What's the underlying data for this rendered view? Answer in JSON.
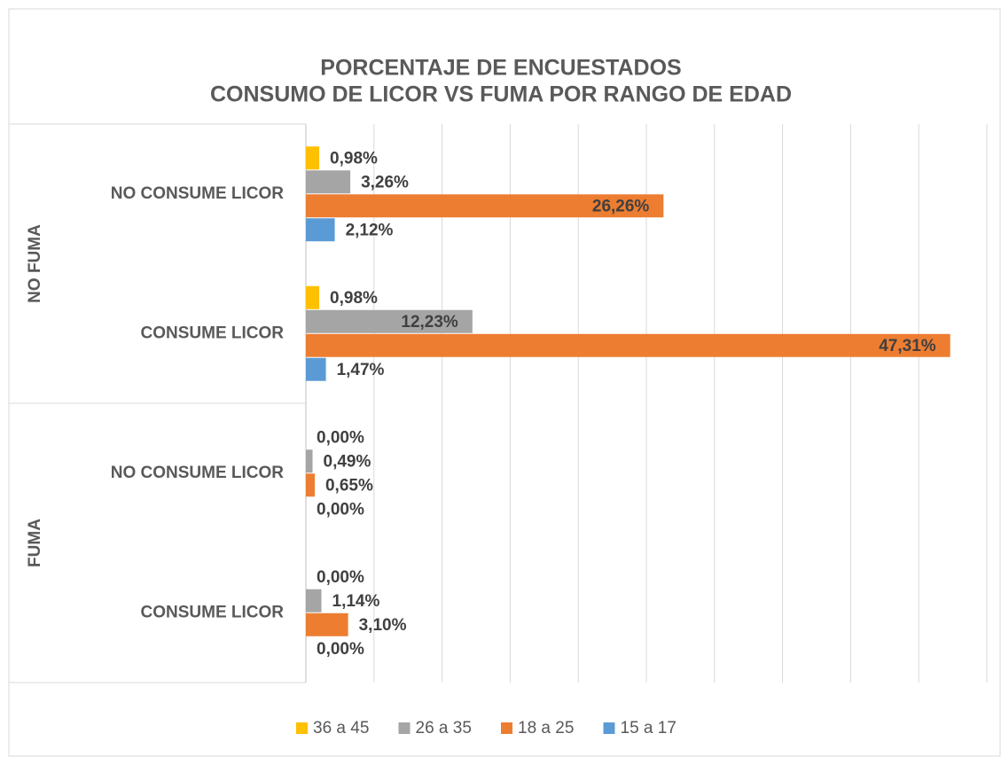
{
  "chart_data": {
    "type": "bar",
    "orientation": "horizontal",
    "title": [
      "PORCENTAJE DE ENCUESTADOS",
      "CONSUMO DE LICOR VS FUMA POR RANGO DE EDAD"
    ],
    "groups": [
      {
        "label": "NO FUMA",
        "categories": [
          "NO CONSUME LICOR",
          "CONSUME LICOR"
        ]
      },
      {
        "label": "FUMA",
        "categories": [
          "NO CONSUME LICOR",
          "CONSUME LICOR"
        ]
      }
    ],
    "series": [
      {
        "name": "36 a 45",
        "color": "#FFC000",
        "values": [
          0.98,
          0.98,
          0,
          0
        ],
        "value_labels": [
          "0,98%",
          "0,98%",
          "0,00%",
          "0,00%"
        ]
      },
      {
        "name": "26 a 35",
        "color": "#A5A5A5",
        "values": [
          3.26,
          12.23,
          0.49,
          1.14
        ],
        "value_labels": [
          "3,26%",
          "12,23%",
          "0,49%",
          "1,14%"
        ]
      },
      {
        "name": "18 a 25",
        "color": "#ED7D31",
        "values": [
          26.26,
          47.31,
          0.65,
          3.1
        ],
        "value_labels": [
          "26,26%",
          "47,31%",
          "0,65%",
          "3,10%"
        ]
      },
      {
        "name": "15 a 17",
        "color": "#5B9BD5",
        "values": [
          2.12,
          1.47,
          0,
          0
        ],
        "value_labels": [
          "2,12%",
          "1,47%",
          "0,00%",
          "0,00%"
        ]
      }
    ],
    "xlim": [
      0,
      50
    ],
    "xticks": [
      0,
      5,
      10,
      15,
      20,
      25,
      30,
      35,
      40,
      45,
      50
    ],
    "grid": true,
    "legend": "bottom"
  }
}
